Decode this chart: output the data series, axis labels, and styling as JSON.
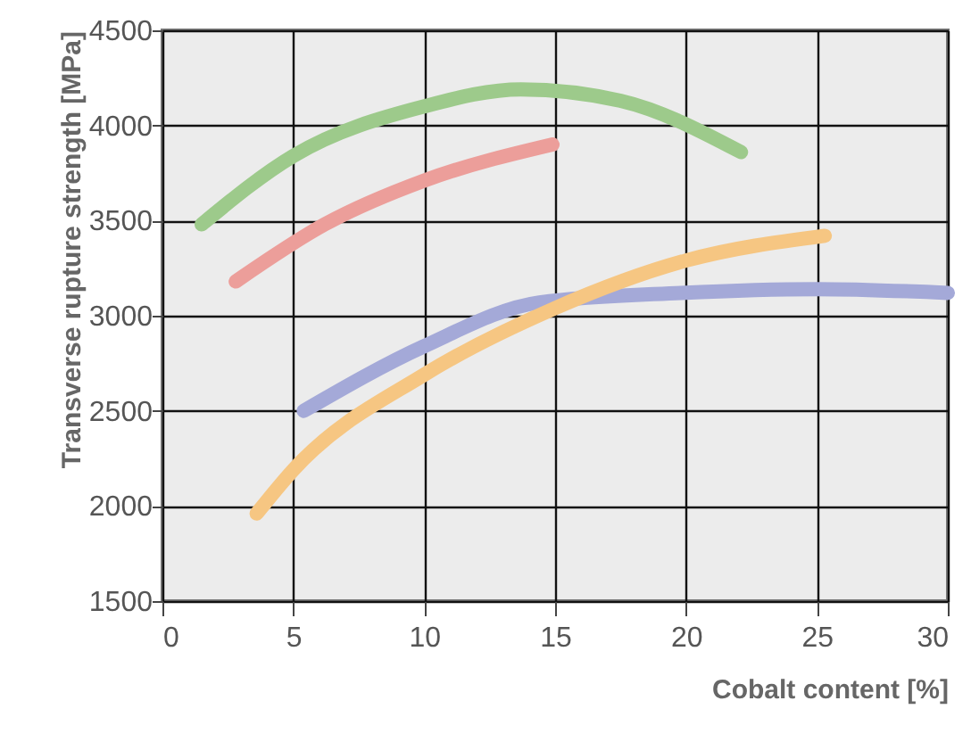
{
  "chart_data": {
    "type": "line",
    "xlabel": "Cobalt content [%]",
    "ylabel": "Transverse rupture strength [MPa]",
    "xlim": [
      0,
      30
    ],
    "ylim": [
      1500,
      4500
    ],
    "xticks": [
      0,
      5,
      10,
      15,
      20,
      25,
      30
    ],
    "yticks": [
      1500,
      2000,
      2500,
      3000,
      3500,
      4000,
      4500
    ],
    "grid": true,
    "marker": "none",
    "line_style": "solid",
    "series": [
      {
        "color": "#9dca8b",
        "x": [
          1.5,
          5,
          10,
          13.7,
          17.5,
          22.1
        ],
        "values": [
          3480,
          3840,
          4100,
          4190,
          4130,
          3860
        ]
      },
      {
        "color": "#ec9e9a",
        "x": [
          2.8,
          6.2,
          10,
          14.9
        ],
        "values": [
          3180,
          3480,
          3710,
          3900
        ]
      },
      {
        "color": "#a4a9d8",
        "x": [
          5.4,
          10,
          14.4,
          19.8,
          25,
          30
        ],
        "values": [
          2500,
          2840,
          3070,
          3120,
          3140,
          3120
        ]
      },
      {
        "color": "#f6c682",
        "x": [
          3.6,
          5,
          10,
          15,
          20,
          25.3
        ],
        "values": [
          1960,
          2190,
          2690,
          3040,
          3290,
          3420
        ]
      }
    ]
  }
}
